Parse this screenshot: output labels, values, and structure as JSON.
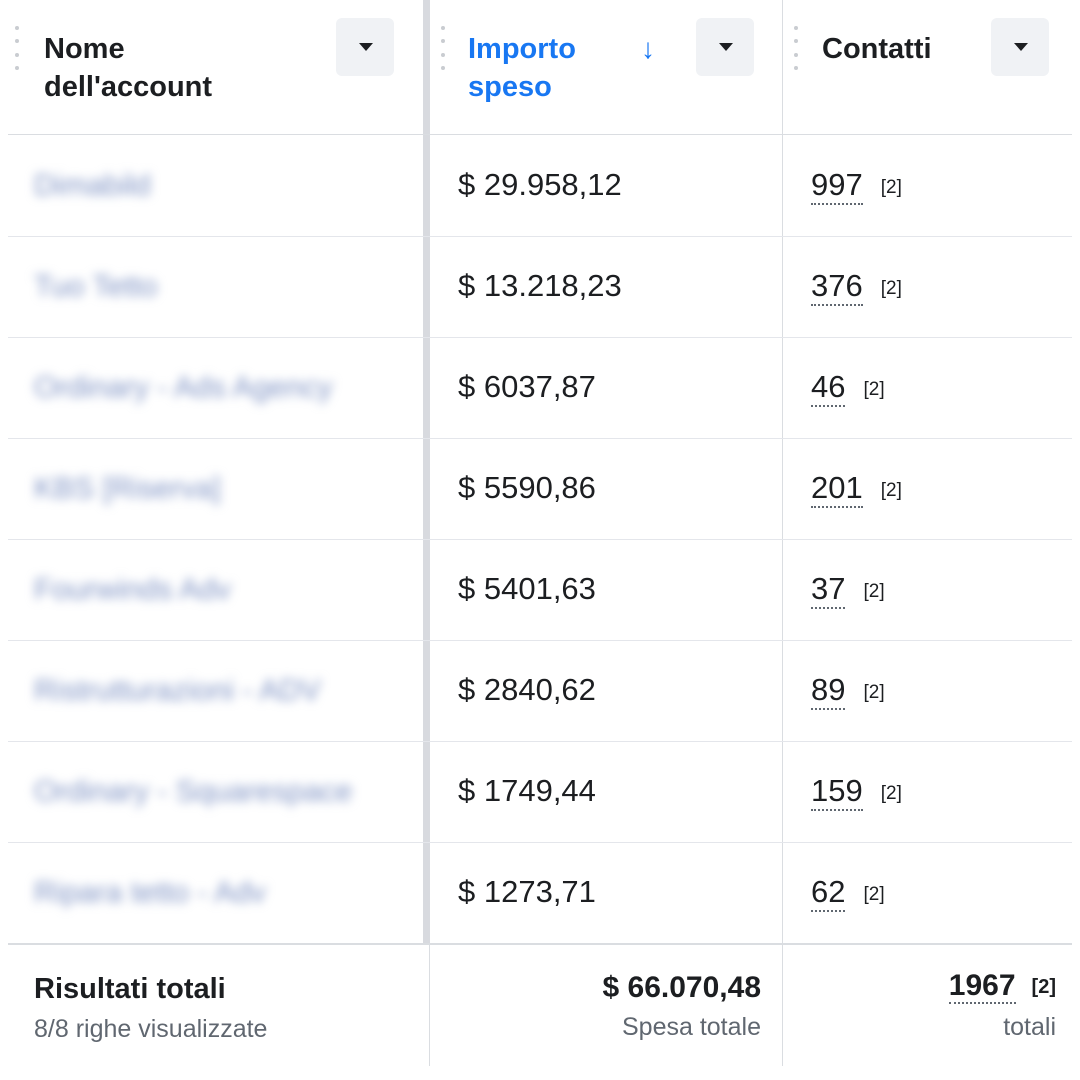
{
  "header": {
    "columns": [
      {
        "title": "Nome\ndell'account"
      },
      {
        "title": "Importo\nspeso",
        "sort_icon": "arrow-down-icon",
        "sort_symbol": "↓"
      },
      {
        "title": "Contatti"
      }
    ],
    "dropdown_icon": "caret-down-icon"
  },
  "rows": [
    {
      "name": "Dimabild",
      "amount": "$ 29.958,12",
      "contacts": "997",
      "ref": "[2]"
    },
    {
      "name": "Tuo Tetto",
      "amount": "$ 13.218,23",
      "contacts": "376",
      "ref": "[2]"
    },
    {
      "name": "Ordinary - Ads Agency",
      "amount": "$ 6037,87",
      "contacts": "46",
      "ref": "[2]"
    },
    {
      "name": "KBS [Riserva]",
      "amount": "$ 5590,86",
      "contacts": "201",
      "ref": "[2]"
    },
    {
      "name": "Fourwinds Adv",
      "amount": "$ 5401,63",
      "contacts": "37",
      "ref": "[2]"
    },
    {
      "name": "Ristrutturazioni - ADV",
      "amount": "$ 2840,62",
      "contacts": "89",
      "ref": "[2]"
    },
    {
      "name": "Ordinary - Squarespace",
      "amount": "$ 1749,44",
      "contacts": "159",
      "ref": "[2]"
    },
    {
      "name": "Ripara tetto - Adv",
      "amount": "$ 1273,71",
      "contacts": "62",
      "ref": "[2]"
    }
  ],
  "footer": {
    "title": "Risultati totali",
    "subtitle": "8/8 righe visualizzate",
    "total_amount": "$ 66.070,48",
    "total_amount_label": "Spesa totale",
    "total_contacts": "1967",
    "total_contacts_ref": "[2]",
    "total_contacts_label": "totali"
  },
  "colors": {
    "accent": "#1877f2",
    "text": "#1c1e21",
    "muted": "#606770",
    "divider": "#dadde1"
  }
}
